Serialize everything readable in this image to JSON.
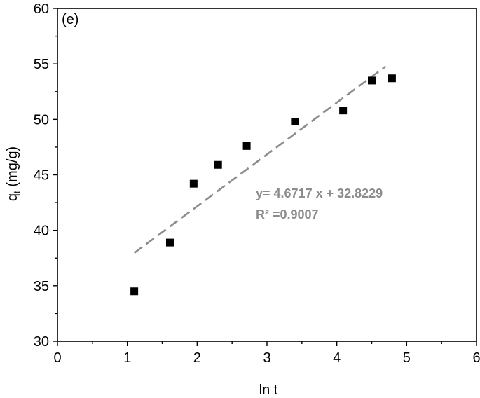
{
  "chart_data": {
    "type": "scatter",
    "panel_label": "(e)",
    "xlabel": "ln t",
    "ylabel_main": "q",
    "ylabel_sub": "t",
    "ylabel_unit": " (mg/g)",
    "xlim": [
      0,
      6
    ],
    "ylim": [
      30,
      60
    ],
    "xticks": [
      0,
      1,
      2,
      3,
      4,
      5,
      6
    ],
    "yticks": [
      30,
      35,
      40,
      45,
      50,
      55,
      60
    ],
    "grid": false,
    "series": [
      {
        "marker": "square",
        "color": "#000000",
        "x": [
          1.1,
          1.61,
          1.95,
          2.3,
          2.71,
          3.4,
          4.09,
          4.5,
          4.79
        ],
        "y": [
          34.5,
          38.9,
          44.2,
          45.9,
          47.6,
          49.8,
          50.8,
          53.5,
          53.7
        ]
      }
    ],
    "fit_line": {
      "slope": 4.6717,
      "intercept": 32.8229,
      "x_range": [
        1.1,
        4.7
      ],
      "color": "#8c8c8c",
      "style": "dashed"
    },
    "annotations": [
      "y= 4.6717 x + 32.8229",
      "R² =0.9007"
    ]
  }
}
